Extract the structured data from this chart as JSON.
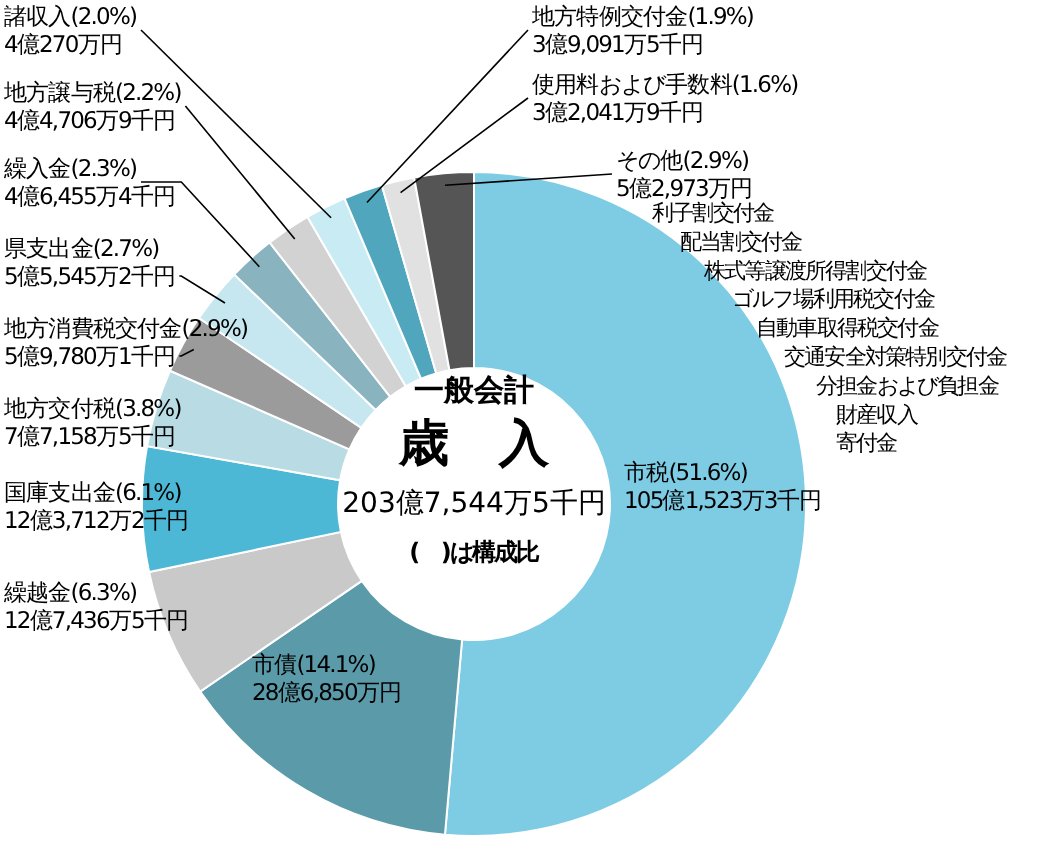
{
  "chart_data": {
    "type": "donut",
    "title": "一般会計",
    "subtitle": "歳　入",
    "categories": [
      "市税(51.6%)",
      "市債(14.1%)",
      "繰越金(6.3%)",
      "国庫支出金(6.1%)",
      "地方交付税(3.8%)",
      "地方消費税交付金(2.9%)",
      "県支出金(2.7%)",
      "繰入金(2.3%)",
      "地方譲与税(2.2%)",
      "諸収入(2.0%)",
      "地方特例交付金(1.9%)",
      "使用料および手数料(1.6%)",
      "その他(2.9%)"
    ],
    "values": [
      51.6,
      14.1,
      6.3,
      6.1,
      3.8,
      2.9,
      2.7,
      2.3,
      2.2,
      2.0,
      1.9,
      1.6,
      2.9
    ],
    "colors": [
      "#7ecbe4",
      "#5b9ba9",
      "#c9c9c9",
      "#4db8d6",
      "#b9dbe4",
      "#9b9b9b",
      "#c6e7ef",
      "#88b3bf",
      "#d2d2d2",
      "#c9ebf3",
      "#4fa6bd",
      "#e1e1e1",
      "#555555"
    ],
    "annotations": [
      "105億1,523万3千円",
      "28億6,850万円",
      "12億7,436万5千円",
      "12億3,712万2千円",
      "7億7,158万5千円",
      "5億9,780万1千円",
      "5億5,545万2千円",
      "4億6,455万4千円",
      "4億4,706万9千円",
      "4億270万円",
      "3億9,091万5千円",
      "3億2,041万9千円",
      "5億2,973万円",
      "203億7,544万5千円",
      "(　)は構成比",
      "利子割交付金",
      "配当割交付金",
      "株式等譲渡所得割交付金",
      "ゴルフ場利用税交付金",
      "自動車取得税交付金",
      "交通安全対策特別交付金",
      "分担金および負担金",
      "財産収入",
      "寄付金"
    ]
  }
}
